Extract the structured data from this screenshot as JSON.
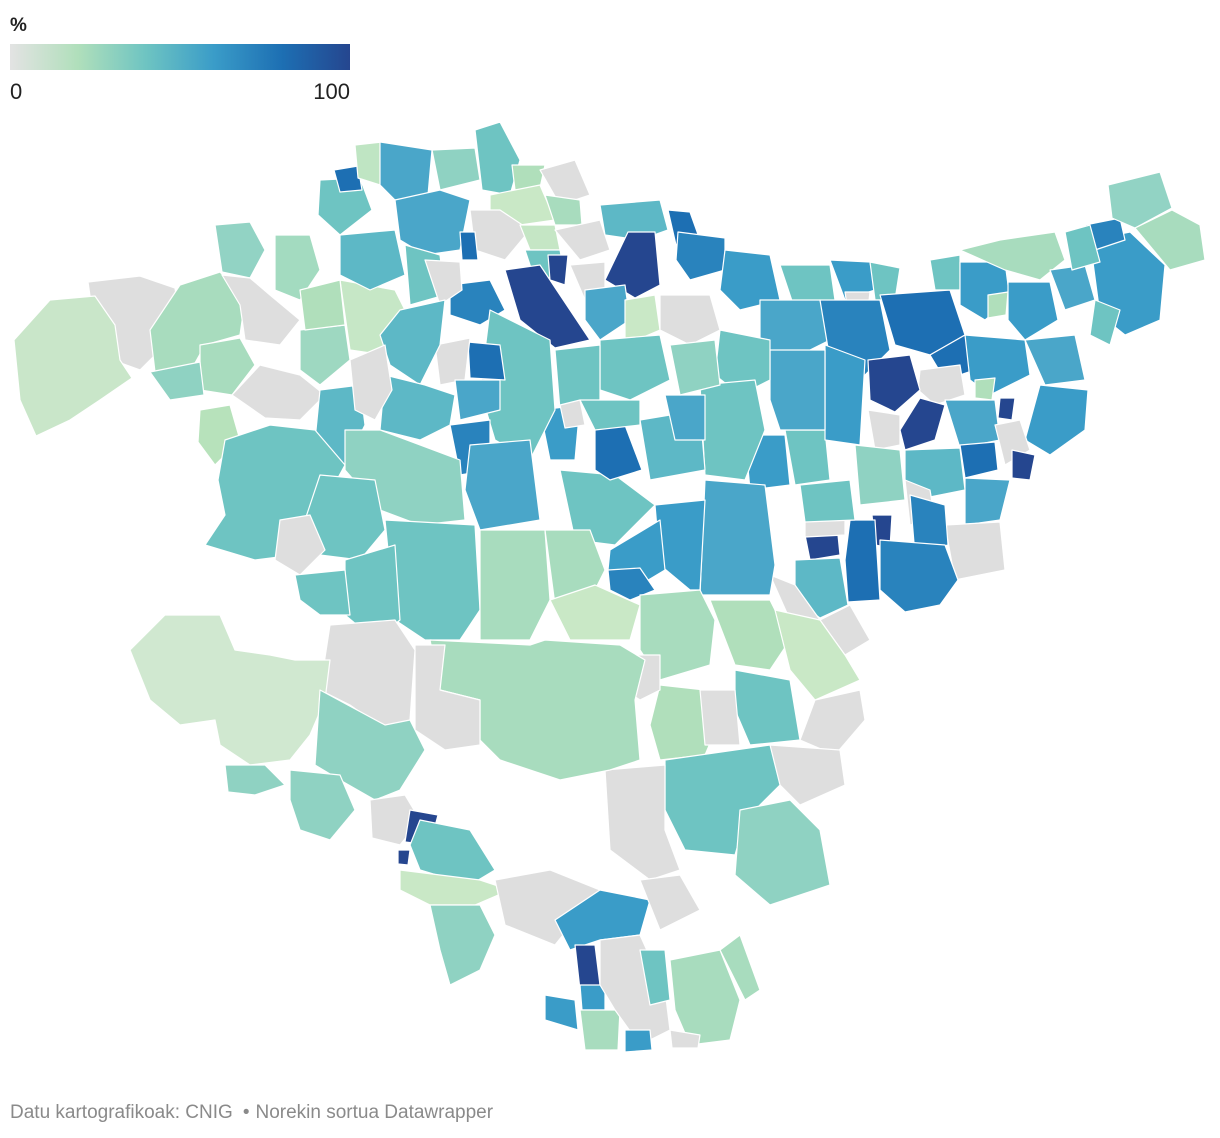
{
  "legend": {
    "title": "%",
    "min_label": "0",
    "max_label": "100",
    "gradient_colors": [
      "#e3e3e3",
      "#b0dfbb",
      "#6ec4c2",
      "#3a9cc8",
      "#1d6fb3",
      "#25468f"
    ]
  },
  "map_colors": {
    "no_data": "#dedede",
    "stroke": "#ffffff"
  },
  "footer": {
    "source": "Datu kartografikoak: CNIG",
    "separator": "•",
    "credit": "Norekin sortua Datawrapper"
  }
}
